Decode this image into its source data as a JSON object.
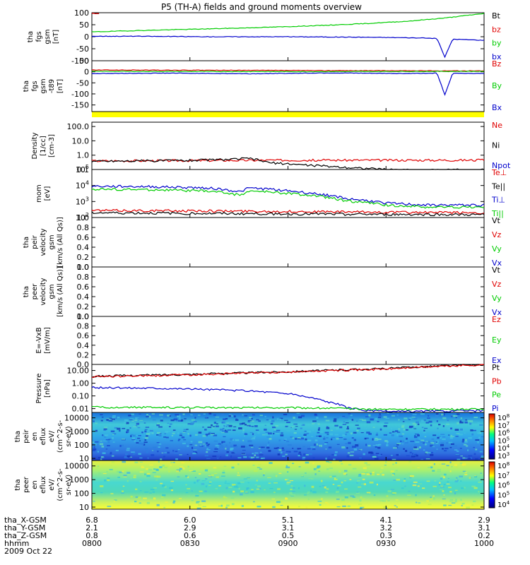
{
  "chart_data": {
    "type": "line",
    "title": "P5 (TH-A) fields and ground moments overview",
    "colors": {
      "black": "#000000",
      "red": "#e00000",
      "green": "#00cc00",
      "blue": "#0000cc",
      "yellow": "#ffff00",
      "cyan": "#00b8d8"
    },
    "time_axis": {
      "ticks": [
        "0800",
        "0830",
        "0900",
        "0930",
        "1000"
      ],
      "ephemeris": [
        {
          "label": "tha_X-GSM",
          "values": [
            "6.8",
            "6.0",
            "5.1",
            "4.1",
            "2.9"
          ]
        },
        {
          "label": "tha_Y-GSM",
          "values": [
            "2.1",
            "2.9",
            "3.1",
            "3.2",
            "3.1"
          ]
        },
        {
          "label": "tha_Z-GSM",
          "values": [
            "0.8",
            "0.6",
            "0.5",
            "0.3",
            "0.2"
          ]
        },
        {
          "label": "hhmm",
          "values": [
            "0800",
            "0830",
            "0900",
            "0930",
            "1000"
          ]
        }
      ],
      "date": "2009 Oct 22"
    },
    "panels": [
      {
        "id": "fgs",
        "ylabel": [
          "tha",
          "fgs",
          "gsm",
          "[nT]"
        ],
        "ylim": [
          -100,
          100
        ],
        "yticks": [
          "100",
          "50",
          "0",
          "-50",
          "-100"
        ],
        "legend": [
          {
            "name": "Bt",
            "color": "#000000"
          },
          {
            "name": "bz",
            "color": "#e00000"
          },
          {
            "name": "by",
            "color": "#00cc00"
          },
          {
            "name": "bx",
            "color": "#0000cc"
          }
        ],
        "series": [
          {
            "name": "Bt",
            "color": "#000000",
            "x": [
              0.0,
              0.02
            ],
            "values": [
              98,
              98
            ]
          },
          {
            "name": "bz",
            "color": "#e00000",
            "x": [
              0.0,
              0.02
            ],
            "values": [
              97,
              97
            ]
          },
          {
            "name": "by",
            "color": "#00cc00",
            "x": [
              0.0,
              0.1,
              0.2,
              0.3,
              0.4,
              0.5,
              0.6,
              0.7,
              0.8,
              0.9,
              1.0
            ],
            "values": [
              20,
              25,
              29,
              33,
              37,
              42,
              48,
              55,
              64,
              78,
              97
            ]
          },
          {
            "name": "bx",
            "color": "#0000cc",
            "x": [
              0.0,
              0.1,
              0.2,
              0.3,
              0.4,
              0.5,
              0.6,
              0.7,
              0.8,
              0.88,
              0.9,
              0.92,
              0.95,
              1.0
            ],
            "values": [
              2,
              2,
              1,
              0,
              0,
              0,
              -1,
              -2,
              -4,
              -7,
              -85,
              -10,
              -12,
              -15
            ]
          }
        ]
      },
      {
        "id": "fgs-t89",
        "ylabel": [
          "tha",
          "fgs",
          "gsm",
          "-t89",
          "[nT]"
        ],
        "ylim": [
          -180,
          50
        ],
        "yticks": [
          "50",
          "0",
          "-50",
          "-100",
          "-150"
        ],
        "legend": [
          {
            "name": "Bz",
            "color": "#e00000"
          },
          {
            "name": "By",
            "color": "#00cc00"
          },
          {
            "name": "Bx",
            "color": "#0000cc"
          }
        ],
        "series": [
          {
            "name": "Bz",
            "color": "#e00000",
            "x": [
              0.0,
              0.5,
              1.0
            ],
            "values": [
              8,
              6,
              4
            ]
          },
          {
            "name": "By",
            "color": "#00cc00",
            "x": [
              0.0,
              0.5,
              1.0
            ],
            "values": [
              2,
              1,
              2
            ]
          },
          {
            "name": "Bx",
            "color": "#0000cc",
            "x": [
              0.0,
              0.2,
              0.4,
              0.6,
              0.8,
              0.88,
              0.9,
              0.92,
              1.0
            ],
            "values": [
              -8,
              -6,
              -9,
              -5,
              -8,
              -6,
              -105,
              -6,
              -8
            ]
          }
        ]
      },
      {
        "id": "density",
        "ylabel": [
          "Density",
          "[1/cc]",
          "[cm-3]"
        ],
        "log": true,
        "ylim": [
          0.1,
          200
        ],
        "yticks": [
          "100.0",
          "10.0",
          "1.0",
          "0.1"
        ],
        "legend": [
          {
            "name": "Ne",
            "color": "#e00000"
          },
          {
            "name": "Ni",
            "color": "#000000"
          },
          {
            "name": "Npot",
            "color": "#0000cc"
          }
        ],
        "series": [
          {
            "name": "Ne",
            "color": "#e00000",
            "x": [
              0.0,
              0.5,
              1.0
            ],
            "values": [
              0.4,
              0.45,
              0.45
            ]
          },
          {
            "name": "Ni",
            "color": "#000000",
            "x": [
              0.0,
              0.2,
              0.35,
              0.4,
              0.45,
              0.55,
              0.65,
              0.75,
              0.85,
              1.0
            ],
            "values": [
              0.38,
              0.42,
              0.5,
              0.6,
              0.3,
              0.2,
              0.14,
              0.1,
              0.09,
              0.1
            ]
          }
        ]
      },
      {
        "id": "temperature",
        "ylabel": [
          "mom",
          "[eV]"
        ],
        "log": true,
        "ylim": [
          100,
          100000
        ],
        "yticks": [
          "10^5",
          "10^4",
          "10^3",
          "10^2"
        ],
        "legend": [
          {
            "name": "Te⊥",
            "color": "#e00000"
          },
          {
            "name": "Te||",
            "color": "#000000"
          },
          {
            "name": "Ti⊥",
            "color": "#0000cc"
          },
          {
            "name": "Ti||",
            "color": "#00cc00"
          }
        ],
        "series": [
          {
            "name": "Ti⊥",
            "color": "#0000cc",
            "x": [
              0.0,
              0.15,
              0.3,
              0.38,
              0.4,
              0.45,
              0.55,
              0.65,
              0.75,
              0.85,
              1.0
            ],
            "values": [
              9000,
              8500,
              7000,
              4000,
              7000,
              6000,
              3500,
              1500,
              800,
              600,
              600
            ]
          },
          {
            "name": "Ti||",
            "color": "#00cc00",
            "x": [
              0.0,
              0.15,
              0.3,
              0.38,
              0.4,
              0.45,
              0.55,
              0.65,
              0.75,
              0.85,
              1.0
            ],
            "values": [
              6000,
              5500,
              4500,
              2500,
              4500,
              4000,
              2500,
              1100,
              600,
              450,
              450
            ]
          },
          {
            "name": "Te⊥",
            "color": "#e00000",
            "x": [
              0.0,
              0.3,
              0.5,
              0.7,
              1.0
            ],
            "values": [
              280,
              260,
              240,
              220,
              200
            ]
          },
          {
            "name": "Te||",
            "color": "#000000",
            "x": [
              0.0,
              0.3,
              0.5,
              0.7,
              1.0
            ],
            "values": [
              200,
              180,
              170,
              160,
              150
            ]
          }
        ]
      },
      {
        "id": "peir-velocity",
        "ylabel": [
          "tha",
          "peir",
          "velocity",
          "gsm",
          "[km/s (All Qs)]"
        ],
        "ylim": [
          0,
          1
        ],
        "yticks": [
          "1.0",
          "0.8",
          "0.6",
          "0.4",
          "0.2",
          "0.0"
        ],
        "legend": [
          {
            "name": "Vt",
            "color": "#000000"
          },
          {
            "name": "Vz",
            "color": "#e00000"
          },
          {
            "name": "Vy",
            "color": "#00cc00"
          },
          {
            "name": "Vx",
            "color": "#0000cc"
          }
        ],
        "series": []
      },
      {
        "id": "peer-velocity",
        "ylabel": [
          "tha",
          "peer",
          "velocity",
          "gsm",
          "[km/s (All Qs)]"
        ],
        "ylim": [
          0,
          1
        ],
        "yticks": [
          "1.0",
          "0.8",
          "0.6",
          "0.4",
          "0.2",
          "0.0"
        ],
        "legend": [
          {
            "name": "Vt",
            "color": "#000000"
          },
          {
            "name": "Vz",
            "color": "#e00000"
          },
          {
            "name": "Vy",
            "color": "#00cc00"
          },
          {
            "name": "Vx",
            "color": "#0000cc"
          }
        ],
        "series": []
      },
      {
        "id": "efield",
        "ylabel": [
          "E=-VxB",
          "[mV/m]"
        ],
        "ylim": [
          0,
          1
        ],
        "yticks": [
          "1.0",
          "0.8",
          "0.6",
          "0.4",
          "0.2",
          "0.0"
        ],
        "legend": [
          {
            "name": "Ez",
            "color": "#e00000"
          },
          {
            "name": "Ey",
            "color": "#00cc00"
          },
          {
            "name": "Ex",
            "color": "#0000cc"
          }
        ],
        "series": []
      },
      {
        "id": "pressure",
        "ylabel": [
          "Pressure",
          "[nPa]"
        ],
        "log": true,
        "ylim": [
          0.005,
          30
        ],
        "yticks": [
          "10.00",
          "1.00",
          "0.10",
          "0.01"
        ],
        "legend": [
          {
            "name": "Pt",
            "color": "#000000"
          },
          {
            "name": "Pb",
            "color": "#e00000"
          },
          {
            "name": "Pe",
            "color": "#00cc00"
          },
          {
            "name": "Pi",
            "color": "#0000cc"
          }
        ],
        "series": [
          {
            "name": "Pt",
            "color": "#000000",
            "x": [
              0.0,
              0.25,
              0.5,
              0.75,
              1.0
            ],
            "values": [
              3.5,
              5,
              8,
              14,
              30
            ]
          },
          {
            "name": "Pb",
            "color": "#e00000",
            "x": [
              0.0,
              0.25,
              0.5,
              0.75,
              1.0
            ],
            "values": [
              3.2,
              4.6,
              7.5,
              13,
              28
            ]
          },
          {
            "name": "Pi",
            "color": "#0000cc",
            "x": [
              0.0,
              0.15,
              0.3,
              0.4,
              0.5,
              0.55,
              0.6,
              0.65,
              0.7,
              0.75,
              0.8,
              1.0
            ],
            "values": [
              0.45,
              0.42,
              0.32,
              0.25,
              0.15,
              0.08,
              0.035,
              0.012,
              0.007,
              0.006,
              0.006,
              0.007
            ]
          },
          {
            "name": "Pe",
            "color": "#00cc00",
            "x": [
              0.0,
              0.3,
              0.5,
              0.6,
              0.7,
              1.0
            ],
            "values": [
              0.013,
              0.012,
              0.012,
              0.011,
              0.009,
              0.009
            ]
          }
        ]
      },
      {
        "id": "peir-spectrogram",
        "type": "heatmap",
        "ylabel": [
          "tha",
          "peir",
          "en",
          "eflux",
          "eV/",
          "(cm^2-s-",
          "sr-eV)"
        ],
        "log": true,
        "ylim": [
          7,
          25000
        ],
        "yticks": [
          "10000",
          "1000",
          "100",
          "10"
        ],
        "colorbar": {
          "labels": [
            "10^8",
            "10^7",
            "10^6",
            "10^5",
            "10^4",
            "10^3"
          ]
        }
      },
      {
        "id": "peer-spectrogram",
        "type": "heatmap",
        "ylabel": [
          "tha",
          "peer",
          "en",
          "eflux",
          "eV/",
          "(cm^2-s-",
          "sr-eV)"
        ],
        "log": true,
        "ylim": [
          7,
          25000
        ],
        "yticks": [
          "10000",
          "1000",
          "100",
          "10"
        ],
        "colorbar": {
          "labels": [
            "10^8",
            "10^7",
            "10^6",
            "10^5",
            "10^4"
          ]
        }
      }
    ]
  }
}
